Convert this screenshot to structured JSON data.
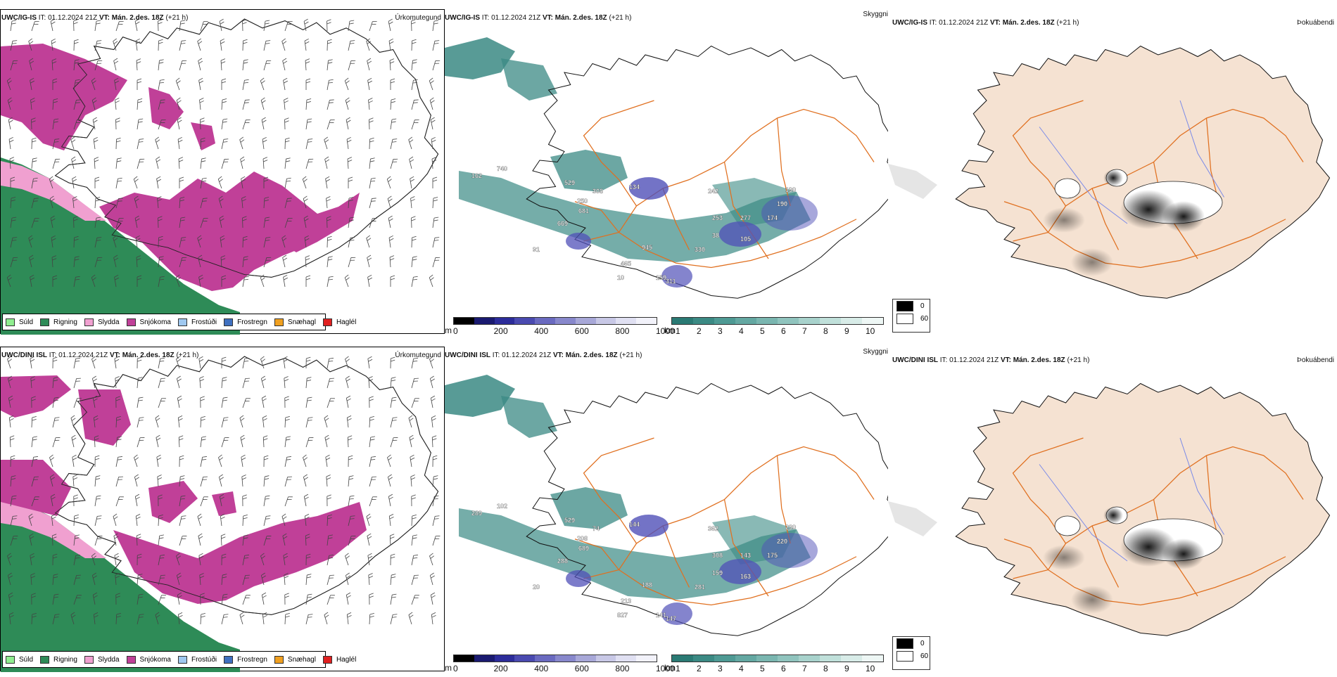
{
  "rows": [
    {
      "model": "UWC/IG-IS",
      "it_label": "IT:",
      "it_value": "01.12.2024 21Z",
      "vt_label": "VT:",
      "vt_value": "Mán. 2.des. 18Z",
      "lead": "(+21 h)",
      "precip_type_label": "Úrkomutegund",
      "visibility_label": "Skyggni",
      "cloud_label": "Þokuábendi",
      "ceiling_numbers": [
        {
          "v": "740"
        },
        {
          "v": "162"
        },
        {
          "v": "529"
        },
        {
          "v": "308"
        },
        {
          "v": "134"
        },
        {
          "v": "250"
        },
        {
          "v": "681"
        },
        {
          "v": "669"
        },
        {
          "v": "91"
        },
        {
          "v": "945"
        },
        {
          "v": "465"
        },
        {
          "v": "10"
        },
        {
          "v": "159"
        },
        {
          "v": "311"
        },
        {
          "v": "330"
        },
        {
          "v": "242"
        },
        {
          "v": "253"
        },
        {
          "v": "190"
        },
        {
          "v": "190"
        },
        {
          "v": "174"
        },
        {
          "v": "277"
        },
        {
          "v": "105"
        },
        {
          "v": "38"
        }
      ]
    },
    {
      "model": "UWC/DINI ISL",
      "it_label": "IT:",
      "it_value": "01.12.2024 21Z",
      "vt_label": "VT:",
      "vt_value": "Mán. 2.des. 18Z",
      "lead": "(+21 h)",
      "precip_type_label": "Úrkomutegund",
      "visibility_label": "Skyggni",
      "cloud_label": "Þokuábendi",
      "ceiling_numbers": [
        {
          "v": "102"
        },
        {
          "v": "289"
        },
        {
          "v": "529"
        },
        {
          "v": "74"
        },
        {
          "v": "144"
        },
        {
          "v": "208"
        },
        {
          "v": "689"
        },
        {
          "v": "288"
        },
        {
          "v": "20"
        },
        {
          "v": "188"
        },
        {
          "v": "213"
        },
        {
          "v": "827"
        },
        {
          "v": "141"
        },
        {
          "v": "147"
        },
        {
          "v": "281"
        },
        {
          "v": "362"
        },
        {
          "v": "308"
        },
        {
          "v": "230"
        },
        {
          "v": "220"
        },
        {
          "v": "175"
        },
        {
          "v": "143"
        },
        {
          "v": "163"
        },
        {
          "v": "159"
        }
      ]
    }
  ],
  "precip_legend": [
    {
      "label": "Súld",
      "color": "#90ee90"
    },
    {
      "label": "Rigning",
      "color": "#2e8b57"
    },
    {
      "label": "Slydda",
      "color": "#f0a0d0"
    },
    {
      "label": "Snjókoma",
      "color": "#c04098"
    },
    {
      "label": "Frostúði",
      "color": "#9fc8f0"
    },
    {
      "label": "Frostregn",
      "color": "#3f70c0"
    },
    {
      "label": "Snæhagl",
      "color": "#f0a020"
    },
    {
      "label": "Haglél",
      "color": "#e02020"
    }
  ],
  "ceiling_scale": {
    "unit": "m",
    "ticks": [
      "0",
      "200",
      "400",
      "600",
      "800",
      "1000"
    ],
    "colors": [
      "#000000",
      "#1a1a70",
      "#2c2c9a",
      "#4a4ab0",
      "#6a6ac0",
      "#8888cc",
      "#a8a8d8",
      "#c8c8e6",
      "#e0e0f2",
      "#f2f2fa"
    ]
  },
  "visibility_scale": {
    "unit": "km",
    "ticks": [
      "1",
      "2",
      "3",
      "4",
      "5",
      "6",
      "7",
      "8",
      "9",
      "10"
    ],
    "colors": [
      "#2a7a74",
      "#3b8a84",
      "#4e9a94",
      "#64a8a2",
      "#7ab6b0",
      "#90c4be",
      "#a8d2cc",
      "#c0e0da",
      "#d8ece8",
      "#eef7f5"
    ]
  },
  "fog_scale": {
    "items": [
      {
        "label": "0",
        "color": "#000000"
      },
      {
        "label": "60",
        "color": "#ffffff"
      }
    ]
  },
  "colors": {
    "snow": "#c04098",
    "rain": "#2e8b57",
    "sleet": "#f0a0d0",
    "visibility": "#3b8a84",
    "ceiling": "#5050b8",
    "roads": "#e07020",
    "land_tan": "#f5e2d2",
    "rivers": "#7a8ae8"
  }
}
